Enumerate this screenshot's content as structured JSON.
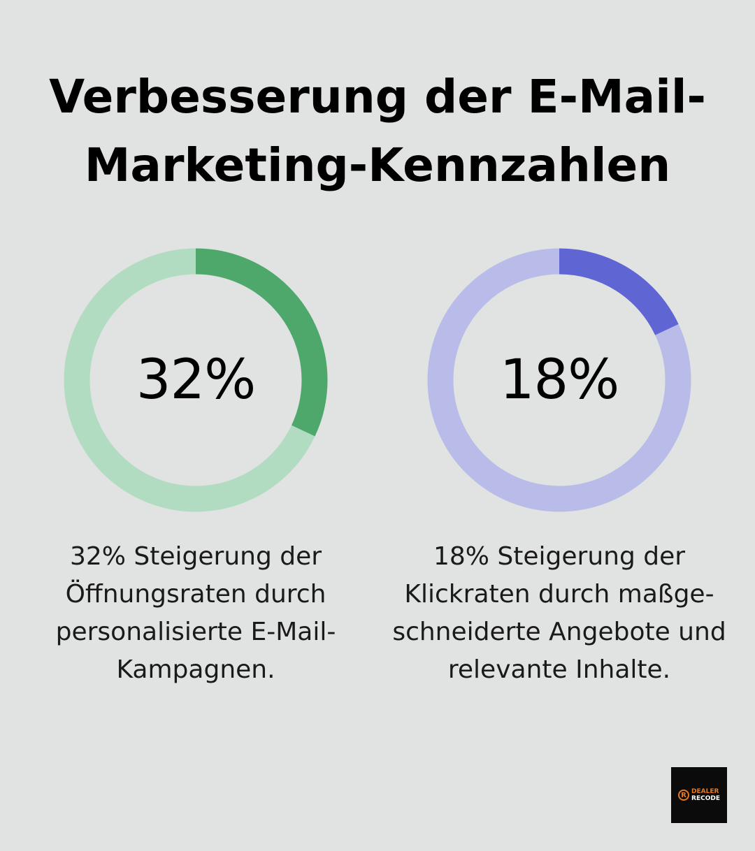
{
  "title_lines": [
    "Verbesserung der E-Mail-",
    "Marketing-Kennzahlen"
  ],
  "chart_data": [
    {
      "type": "pie",
      "variant": "donut",
      "value_percent": 32,
      "label": "32%",
      "colors": {
        "filled": "#4ea86c",
        "track": "#b1dcc1"
      },
      "description_lines": [
        "32% Steigerung der",
        "Öffnungsraten durch",
        "personalisierte E-Mail-",
        "Kampagnen."
      ]
    },
    {
      "type": "pie",
      "variant": "donut",
      "value_percent": 18,
      "label": "18%",
      "colors": {
        "filled": "#5f65d2",
        "track": "#b9bce9"
      },
      "description_lines": [
        "18% Steigerung der",
        "Klickraten durch maßge-",
        "schneiderte Angebote und",
        "relevante Inhalte."
      ]
    }
  ],
  "logo": {
    "line1": "DEALER",
    "line2": "RECODE",
    "mark": "R"
  }
}
